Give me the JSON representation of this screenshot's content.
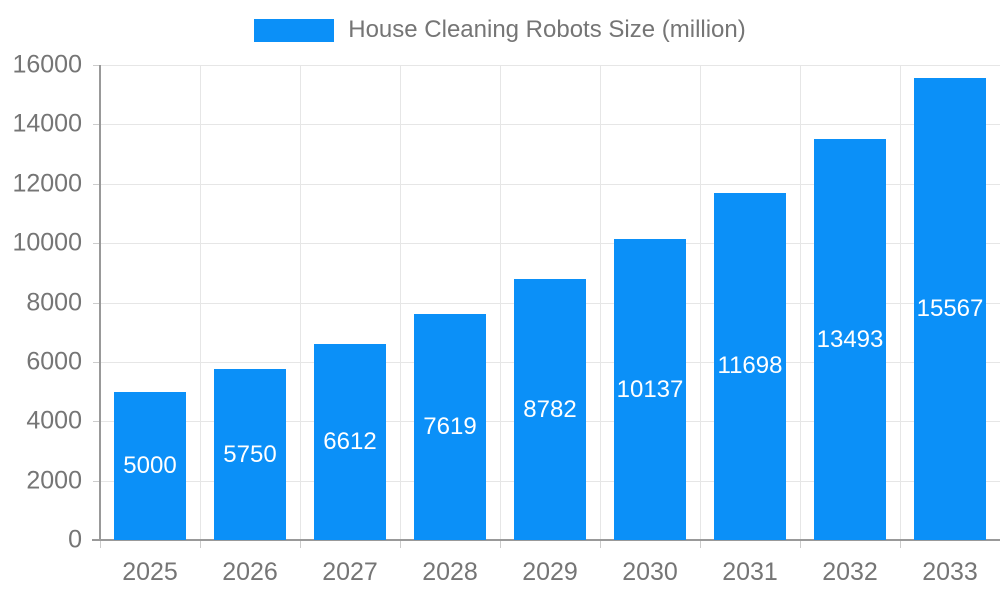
{
  "chart_data": {
    "type": "bar",
    "title": "House Cleaning Robots Size (million)",
    "legend": {
      "position": "top",
      "entries": [
        "House Cleaning Robots Size (million)"
      ]
    },
    "categories": [
      "2025",
      "2026",
      "2027",
      "2028",
      "2029",
      "2030",
      "2031",
      "2032",
      "2033"
    ],
    "values": [
      5000,
      5750,
      6612,
      7619,
      8782,
      10137,
      11698,
      13493,
      15567
    ],
    "bar_value_labels": [
      "5000",
      "5750",
      "6612",
      "7619",
      "8782",
      "10137",
      "11698",
      "13493",
      "15567"
    ],
    "xlabel": "",
    "ylabel": "",
    "ylim": [
      0,
      16000
    ],
    "yticks": [
      0,
      2000,
      4000,
      6000,
      8000,
      10000,
      12000,
      14000,
      16000
    ],
    "grid": true,
    "colors": {
      "bar": "#0b90f8",
      "grid": "#e6e6e6",
      "axis": "#999999",
      "tick": "#cccccc",
      "tick_text": "#757575",
      "bar_label": "#ffffff",
      "background": "#ffffff"
    }
  }
}
